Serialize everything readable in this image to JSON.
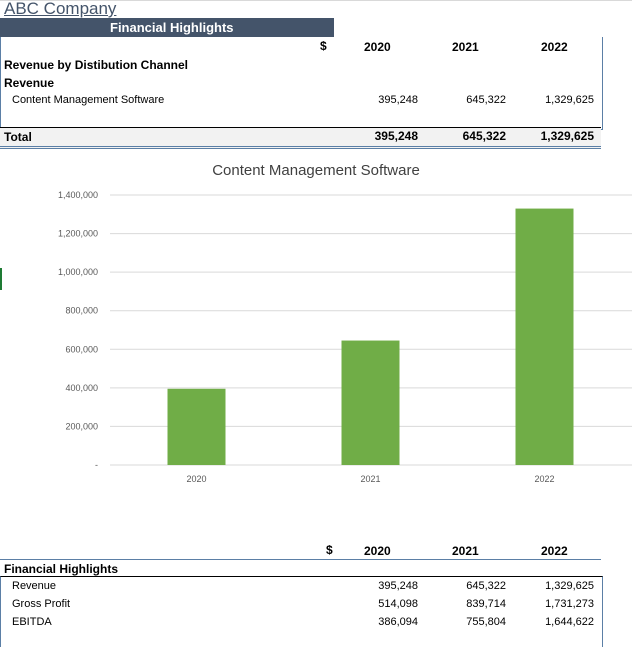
{
  "company": "ABC Company",
  "banner_title": "Financial Highlights",
  "currency_symbol": "$",
  "years": [
    "2020",
    "2021",
    "2022"
  ],
  "section_title": "Revenue by Distibution Channel",
  "revenue_label": "Revenue",
  "row_label": "Content Management Software",
  "row_values": [
    "395,248",
    "645,322",
    "1,329,625"
  ],
  "total_label": "Total",
  "total_values": [
    "395,248",
    "645,322",
    "1,329,625"
  ],
  "chart_data": {
    "type": "bar",
    "title": "Content Management Software",
    "categories": [
      "2020",
      "2021",
      "2022"
    ],
    "values": [
      395248,
      645322,
      1329625
    ],
    "ylim": [
      0,
      1400000
    ],
    "yticks": [
      "-",
      "200,000",
      "400,000",
      "600,000",
      "800,000",
      "1,000,000",
      "1,200,000",
      "1,400,000"
    ],
    "bar_color": "#70ad47",
    "grid": true
  },
  "lower": {
    "currency_symbol": "$",
    "years": [
      "2020",
      "2021",
      "2022"
    ],
    "title": "Financial Highlights",
    "rows": [
      {
        "label": "Revenue",
        "values": [
          "395,248",
          "645,322",
          "1,329,625"
        ]
      },
      {
        "label": "Gross Profit",
        "values": [
          "514,098",
          "839,714",
          "1,731,273"
        ]
      },
      {
        "label": "EBITDA",
        "values": [
          "386,094",
          "755,804",
          "1,644,622"
        ]
      }
    ]
  }
}
